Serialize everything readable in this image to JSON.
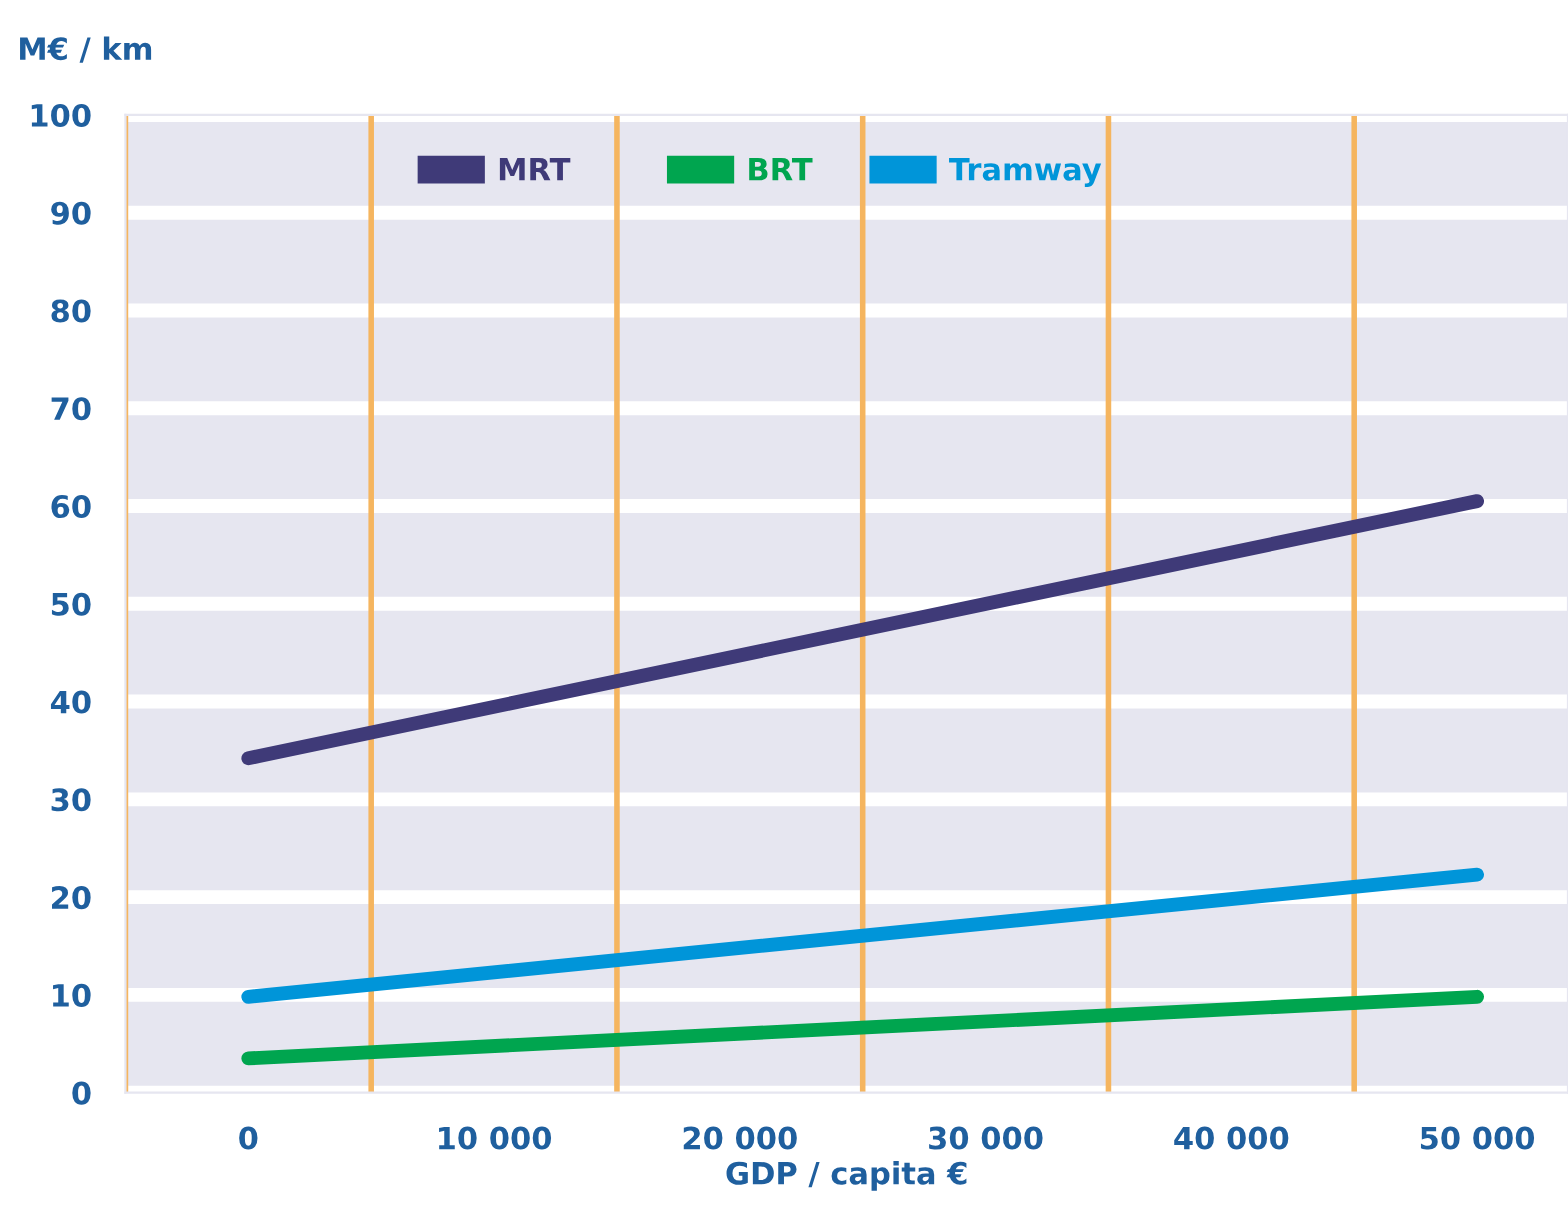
{
  "chart_data": {
    "type": "line",
    "ylabel": "M€ / km",
    "xlabel": "GDP / capita €",
    "x": [
      0,
      50000
    ],
    "series": [
      {
        "name": "MRT",
        "color": "#3f3a78",
        "values": [
          34.2,
          60.5
        ]
      },
      {
        "name": "BRT",
        "color": "#00a54f",
        "values": [
          3.5,
          9.8
        ]
      },
      {
        "name": "Tramway",
        "color": "#0095d9",
        "values": [
          9.8,
          22.3
        ]
      }
    ],
    "xlim": [
      -5000,
      53700
    ],
    "ylim": [
      0,
      100
    ],
    "xticks": [
      0,
      {
        "value": 10000,
        "label": "10 000"
      },
      {
        "value": 20000,
        "label": "20 000"
      },
      {
        "value": 30000,
        "label": "30 000"
      },
      {
        "value": 40000,
        "label": "40 000"
      },
      {
        "value": 50000,
        "label": "50 000"
      }
    ],
    "yticks": [
      0,
      10,
      20,
      30,
      40,
      50,
      60,
      70,
      80,
      90,
      100
    ],
    "ref_lines": [
      {
        "axis": "x",
        "value": -5000,
        "color": "#f5b55f"
      },
      {
        "axis": "x",
        "value": 5000,
        "color": "#f5b55f"
      },
      {
        "axis": "x",
        "value": 15000,
        "color": "#f5b55f"
      },
      {
        "axis": "x",
        "value": 25000,
        "color": "#f5b55f"
      },
      {
        "axis": "x",
        "value": 35000,
        "color": "#f5b55f"
      },
      {
        "axis": "x",
        "value": 45000,
        "color": "#f5b55f"
      }
    ],
    "grid": "y",
    "legend": "top",
    "marker": "none",
    "line_style": "solid"
  }
}
